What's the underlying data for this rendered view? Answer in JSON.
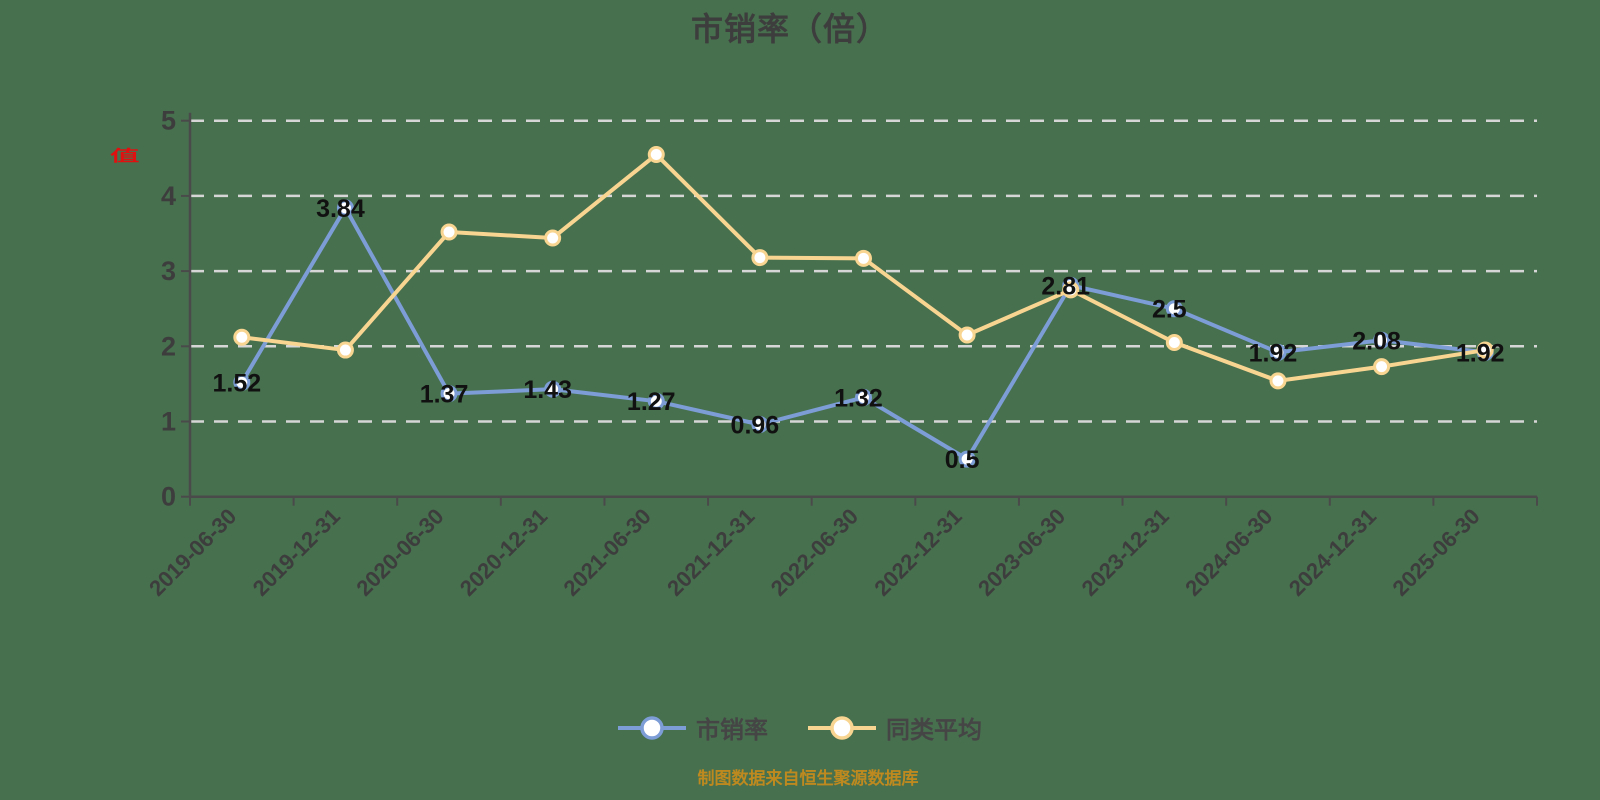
{
  "title": "市销率（倍）",
  "y_axis_label": "值",
  "footer_note": "制图数据来自恒生聚源数据库",
  "legend": {
    "items": [
      "市销率",
      "同类平均"
    ]
  },
  "colors": {
    "background": "#47704E",
    "series_main": "#7C9DD6",
    "series_avg": "#F9D592",
    "marker_fill": "#FFFFFF",
    "grid": "#D6D6D6",
    "axis": "#4A4A4A",
    "text_dark": "#3D3D3D",
    "data_label": "#111111",
    "y_axis_label_red": "#E01010",
    "footer": "#BE8A1F",
    "legend_text": "#454545"
  },
  "chart_data": {
    "type": "line",
    "title": "市销率（倍）",
    "categories": [
      "2019-06-30",
      "2019-12-31",
      "2020-06-30",
      "2020-12-31",
      "2021-06-30",
      "2021-12-31",
      "2022-06-30",
      "2022-12-31",
      "2023-06-30",
      "2023-12-31",
      "2024-06-30",
      "2024-12-31",
      "2025-06-30"
    ],
    "series": [
      {
        "name": "市销率",
        "color": "#7C9DD6",
        "values": [
          1.52,
          3.84,
          1.37,
          1.43,
          1.27,
          0.96,
          1.32,
          0.5,
          2.81,
          2.5,
          1.92,
          2.08,
          1.92
        ],
        "point_labels": [
          "1.52",
          "3.84",
          "1.37",
          "1.43",
          "1.27",
          "0.96",
          "1.32",
          "0.5",
          "2.81",
          "2.5",
          "1.92",
          "2.08",
          "1.92"
        ]
      },
      {
        "name": "同类平均",
        "color": "#F9D592",
        "values": [
          2.12,
          1.95,
          3.52,
          3.44,
          4.55,
          3.18,
          3.17,
          2.15,
          2.75,
          2.05,
          1.54,
          1.73,
          1.95
        ],
        "point_labels": []
      }
    ],
    "ylim": [
      0,
      5
    ],
    "yticks": [
      0,
      1,
      2,
      3,
      4,
      5
    ],
    "grid": "horizontal-dashed",
    "x_label_rotation": 45,
    "legend_position": "bottom"
  }
}
